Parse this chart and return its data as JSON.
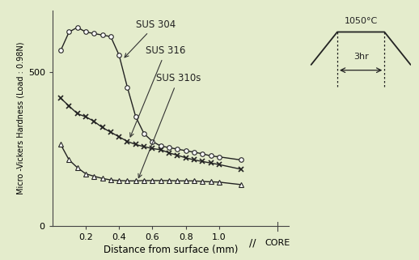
{
  "background_color": "#e4eccc",
  "plot_bg_color": "#e4eccc",
  "ylabel": "Micro -Vickers Hardness (Load : 0.98N)",
  "xlabel": "Distance from surface (mm)",
  "sus304": {
    "label": "SUS 304",
    "x": [
      0.05,
      0.1,
      0.15,
      0.2,
      0.25,
      0.3,
      0.35,
      0.4,
      0.45,
      0.5,
      0.55,
      0.6,
      0.65,
      0.7,
      0.75,
      0.8,
      0.85,
      0.9,
      0.95,
      1.0,
      1.13
    ],
    "y": [
      570,
      630,
      645,
      630,
      625,
      620,
      615,
      555,
      450,
      355,
      300,
      275,
      260,
      255,
      250,
      245,
      240,
      235,
      228,
      225,
      215
    ]
  },
  "sus316": {
    "label": "SUS 316",
    "x": [
      0.05,
      0.1,
      0.15,
      0.2,
      0.25,
      0.3,
      0.35,
      0.4,
      0.45,
      0.5,
      0.55,
      0.6,
      0.65,
      0.7,
      0.75,
      0.8,
      0.85,
      0.9,
      0.95,
      1.0,
      1.13
    ],
    "y": [
      415,
      390,
      365,
      355,
      340,
      320,
      305,
      290,
      275,
      265,
      258,
      252,
      248,
      238,
      230,
      222,
      215,
      210,
      205,
      200,
      185
    ]
  },
  "sus310s": {
    "label": "SUS 310s",
    "x": [
      0.05,
      0.1,
      0.15,
      0.2,
      0.25,
      0.3,
      0.35,
      0.4,
      0.45,
      0.5,
      0.55,
      0.6,
      0.65,
      0.7,
      0.75,
      0.8,
      0.85,
      0.9,
      0.95,
      1.0,
      1.13
    ],
    "y": [
      265,
      215,
      190,
      170,
      162,
      155,
      150,
      148,
      147,
      147,
      148,
      148,
      148,
      148,
      147,
      147,
      147,
      145,
      144,
      143,
      135
    ]
  },
  "title_temp": "1050°C",
  "title_time": "3hr",
  "line_color": "#222222",
  "ytick_labels": [
    "0",
    "500"
  ],
  "ytick_vals": [
    0,
    500
  ],
  "xtick_vals": [
    0.2,
    0.4,
    0.6,
    0.8,
    1.0
  ],
  "xtick_labels": [
    "0.2",
    "0.4",
    "0.6",
    "0.8",
    "1.0"
  ],
  "ylim": [
    0,
    700
  ],
  "xlim": [
    0,
    1.42
  ]
}
